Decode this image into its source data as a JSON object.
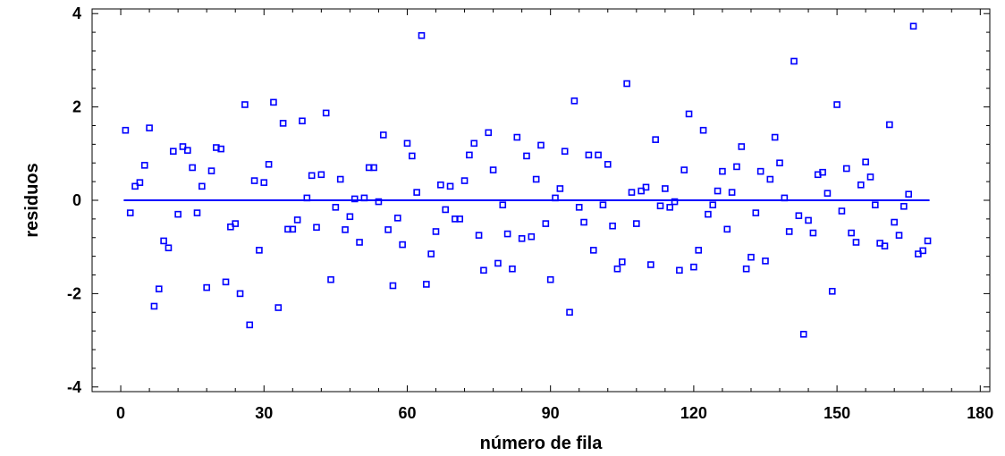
{
  "chart_data": {
    "type": "scatter",
    "xlabel": "número de fila",
    "ylabel": "residuos",
    "xlim": [
      -6,
      182
    ],
    "ylim": [
      -4.1,
      4.1
    ],
    "xticks": [
      0,
      30,
      60,
      90,
      120,
      150,
      180
    ],
    "yticks": [
      -4,
      -2,
      0,
      2,
      4
    ],
    "grid": false,
    "reference_line": {
      "y": 0,
      "color": "#0000ff"
    },
    "marker": {
      "shape": "square",
      "color": "#0000ff",
      "fill": "none"
    },
    "points": [
      [
        1,
        1.5
      ],
      [
        2,
        -0.27
      ],
      [
        3,
        0.3
      ],
      [
        4,
        0.38
      ],
      [
        5,
        0.75
      ],
      [
        6,
        1.55
      ],
      [
        7,
        -2.27
      ],
      [
        8,
        -1.9
      ],
      [
        9,
        -0.87
      ],
      [
        10,
        -1.02
      ],
      [
        11,
        1.05
      ],
      [
        12,
        -0.3
      ],
      [
        13,
        1.15
      ],
      [
        14,
        1.07
      ],
      [
        15,
        0.7
      ],
      [
        16,
        -0.27
      ],
      [
        17,
        0.3
      ],
      [
        18,
        -1.87
      ],
      [
        19,
        0.63
      ],
      [
        20,
        1.13
      ],
      [
        21,
        1.1
      ],
      [
        22,
        -1.75
      ],
      [
        23,
        -0.57
      ],
      [
        24,
        -0.5
      ],
      [
        25,
        -2.0
      ],
      [
        26,
        2.05
      ],
      [
        27,
        -2.67
      ],
      [
        28,
        0.42
      ],
      [
        29,
        -1.07
      ],
      [
        30,
        0.38
      ],
      [
        31,
        0.77
      ],
      [
        32,
        2.1
      ],
      [
        33,
        -2.3
      ],
      [
        34,
        1.65
      ],
      [
        35,
        -0.62
      ],
      [
        36,
        -0.62
      ],
      [
        37,
        -0.42
      ],
      [
        38,
        1.7
      ],
      [
        39,
        0.05
      ],
      [
        40,
        0.53
      ],
      [
        41,
        -0.58
      ],
      [
        42,
        0.55
      ],
      [
        43,
        1.87
      ],
      [
        44,
        -1.7
      ],
      [
        45,
        -0.15
      ],
      [
        46,
        0.45
      ],
      [
        47,
        -0.63
      ],
      [
        48,
        -0.35
      ],
      [
        49,
        0.03
      ],
      [
        50,
        -0.9
      ],
      [
        51,
        0.05
      ],
      [
        52,
        0.7
      ],
      [
        53,
        0.7
      ],
      [
        54,
        -0.03
      ],
      [
        55,
        1.4
      ],
      [
        56,
        -0.63
      ],
      [
        57,
        -1.83
      ],
      [
        58,
        -0.38
      ],
      [
        59,
        -0.95
      ],
      [
        60,
        1.22
      ],
      [
        61,
        0.95
      ],
      [
        62,
        0.17
      ],
      [
        63,
        3.53
      ],
      [
        64,
        -1.8
      ],
      [
        65,
        -1.15
      ],
      [
        66,
        -0.67
      ],
      [
        67,
        0.33
      ],
      [
        68,
        -0.2
      ],
      [
        69,
        0.3
      ],
      [
        70,
        -0.4
      ],
      [
        71,
        -0.4
      ],
      [
        72,
        0.42
      ],
      [
        73,
        0.97
      ],
      [
        74,
        1.22
      ],
      [
        75,
        -0.75
      ],
      [
        76,
        -1.5
      ],
      [
        77,
        1.45
      ],
      [
        78,
        0.65
      ],
      [
        79,
        -1.35
      ],
      [
        80,
        -0.1
      ],
      [
        81,
        -0.72
      ],
      [
        82,
        -1.47
      ],
      [
        83,
        1.35
      ],
      [
        84,
        -0.82
      ],
      [
        85,
        0.95
      ],
      [
        86,
        -0.78
      ],
      [
        87,
        0.45
      ],
      [
        88,
        1.18
      ],
      [
        89,
        -0.5
      ],
      [
        90,
        -1.7
      ],
      [
        91,
        0.05
      ],
      [
        92,
        0.25
      ],
      [
        93,
        1.05
      ],
      [
        94,
        -2.4
      ],
      [
        95,
        2.13
      ],
      [
        96,
        -0.15
      ],
      [
        97,
        -0.47
      ],
      [
        98,
        0.97
      ],
      [
        99,
        -1.07
      ],
      [
        100,
        0.97
      ],
      [
        101,
        -0.1
      ],
      [
        102,
        0.77
      ],
      [
        103,
        -0.55
      ],
      [
        104,
        -1.47
      ],
      [
        105,
        -1.32
      ],
      [
        106,
        2.5
      ],
      [
        107,
        0.17
      ],
      [
        108,
        -0.5
      ],
      [
        109,
        0.2
      ],
      [
        110,
        0.28
      ],
      [
        111,
        -1.38
      ],
      [
        112,
        1.3
      ],
      [
        113,
        -0.12
      ],
      [
        114,
        0.25
      ],
      [
        115,
        -0.15
      ],
      [
        116,
        -0.03
      ],
      [
        117,
        -1.5
      ],
      [
        118,
        0.65
      ],
      [
        119,
        1.85
      ],
      [
        120,
        -1.43
      ],
      [
        121,
        -1.07
      ],
      [
        122,
        1.5
      ],
      [
        123,
        -0.3
      ],
      [
        124,
        -0.1
      ],
      [
        125,
        0.2
      ],
      [
        126,
        0.62
      ],
      [
        127,
        -0.62
      ],
      [
        128,
        0.17
      ],
      [
        129,
        0.72
      ],
      [
        130,
        1.15
      ],
      [
        131,
        -1.47
      ],
      [
        132,
        -1.22
      ],
      [
        133,
        -0.27
      ],
      [
        134,
        0.62
      ],
      [
        135,
        -1.3
      ],
      [
        136,
        0.45
      ],
      [
        137,
        1.35
      ],
      [
        138,
        0.8
      ],
      [
        139,
        0.05
      ],
      [
        140,
        -0.67
      ],
      [
        141,
        2.98
      ],
      [
        142,
        -0.33
      ],
      [
        143,
        -2.87
      ],
      [
        144,
        -0.43
      ],
      [
        145,
        -0.7
      ],
      [
        146,
        0.55
      ],
      [
        147,
        0.6
      ],
      [
        148,
        0.15
      ],
      [
        149,
        -1.95
      ],
      [
        150,
        2.05
      ],
      [
        151,
        -0.23
      ],
      [
        152,
        0.68
      ],
      [
        153,
        -0.7
      ],
      [
        154,
        -0.9
      ],
      [
        155,
        0.33
      ],
      [
        156,
        0.82
      ],
      [
        157,
        0.5
      ],
      [
        158,
        -0.1
      ],
      [
        159,
        -0.92
      ],
      [
        160,
        -0.98
      ],
      [
        161,
        1.62
      ],
      [
        162,
        -0.47
      ],
      [
        163,
        -0.75
      ],
      [
        164,
        -0.13
      ],
      [
        165,
        0.13
      ],
      [
        166,
        3.73
      ],
      [
        167,
        -1.15
      ],
      [
        168,
        -1.08
      ],
      [
        169,
        -0.87
      ]
    ]
  }
}
